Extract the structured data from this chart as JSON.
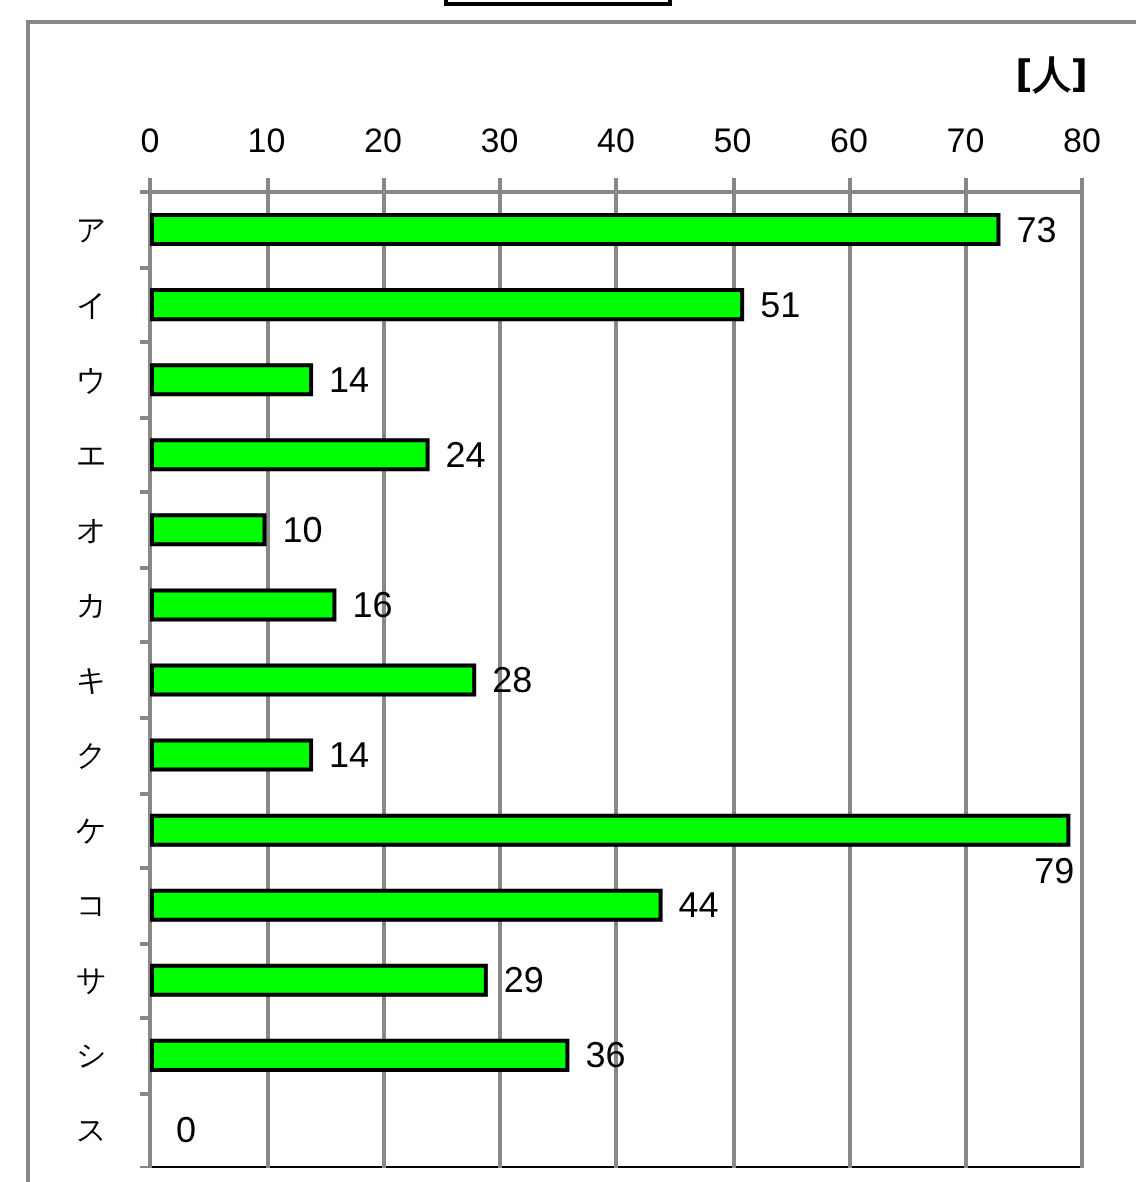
{
  "chart_data": {
    "type": "bar",
    "orientation": "horizontal",
    "xlabel": "[人]",
    "categories": [
      "ア",
      "イ",
      "ウ",
      "エ",
      "オ",
      "カ",
      "キ",
      "ク",
      "ケ",
      "コ",
      "サ",
      "シ",
      "ス"
    ],
    "values": [
      73,
      51,
      14,
      24,
      10,
      16,
      28,
      14,
      79,
      44,
      29,
      36,
      0
    ],
    "color": "#00ff00",
    "xlim": [
      0,
      80
    ],
    "xticks": [
      0,
      10,
      20,
      30,
      40,
      50,
      60,
      70,
      80
    ],
    "grid": "x",
    "data_labels": true
  }
}
